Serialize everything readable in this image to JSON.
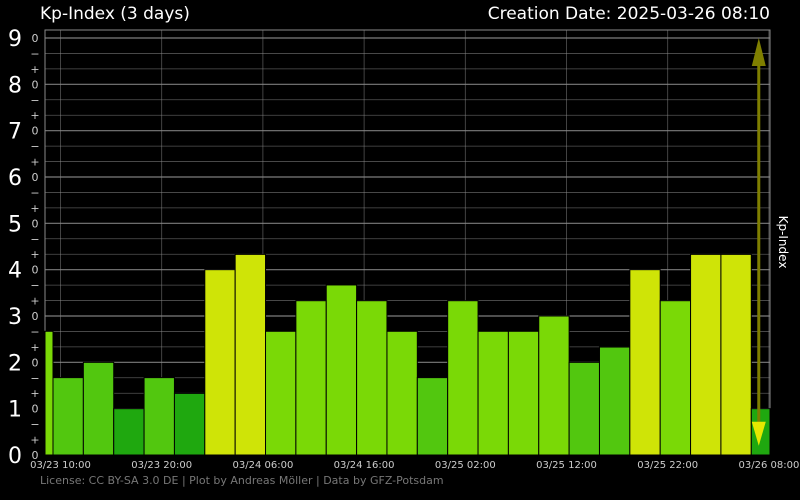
{
  "header": {
    "title": "Kp-Index (3 days)",
    "creation": "Creation Date: 2025-03-26 08:10"
  },
  "footer": {
    "license": "License: CC BY-SA 3.0 DE | Plot by Andreas Möller | Data by GFZ-Potsdam"
  },
  "colors": {
    "background": "#000000",
    "grid": "#8a8a8a",
    "tick_text": "#cccccc",
    "kp_low": "#1fa80f",
    "kp_mid": "#52c70f",
    "kp_mid_high": "#7ad906",
    "kp_active": "#cfe407",
    "arrow": "#7f7f00"
  },
  "chart_data": {
    "type": "bar",
    "title": "Kp-Index (3 days)",
    "ylabel": "Kp-Index",
    "ylim": [
      0,
      9.3
    ],
    "y_major_ticks": [
      "0",
      "1",
      "2",
      "3",
      "4",
      "5",
      "6",
      "7",
      "8",
      "9"
    ],
    "y_minor_signs": [
      "+",
      "0",
      "−"
    ],
    "x_ticks": [
      "03/23 10:00",
      "03/23 20:00",
      "03/24 06:00",
      "03/24 16:00",
      "03/25 02:00",
      "03/25 12:00",
      "03/25 22:00",
      "03/26 08:00"
    ],
    "interval_hours": 3,
    "values": [
      2.67,
      1.67,
      2.0,
      1.0,
      1.67,
      1.33,
      4.0,
      4.33,
      2.67,
      3.33,
      3.67,
      3.33,
      2.67,
      1.67,
      3.33,
      2.67,
      2.67,
      3.0,
      2.0,
      2.33,
      4.0,
      3.33,
      4.33,
      4.33,
      1.0
    ],
    "first_bar_partial": true,
    "marker": {
      "at_hours_after_first_tick": 69,
      "from_kp": 0.2,
      "to_kp": 9.0
    },
    "grid": true
  }
}
